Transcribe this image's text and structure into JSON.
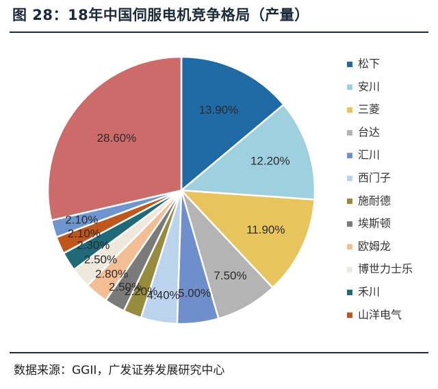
{
  "header": {
    "title": "图 28：18年中国伺服电机竞争格局（产量）"
  },
  "footer": {
    "source": "数据来源：GGII，广发证券发展研究中心"
  },
  "chart_data": {
    "type": "pie",
    "title": "18年中国伺服电机竞争格局（产量）",
    "unit": "%",
    "legend_position": "right",
    "slices": [
      {
        "name": "松下",
        "value": 13.9,
        "label": "13.90%",
        "color": "#1f6aa5"
      },
      {
        "name": "安川",
        "value": 12.2,
        "label": "12.20%",
        "color": "#9ed0e0"
      },
      {
        "name": "三菱",
        "value": 11.9,
        "label": "11.90%",
        "color": "#e8c55c"
      },
      {
        "name": "台达",
        "value": 7.5,
        "label": "7.50%",
        "color": "#b4b4b4"
      },
      {
        "name": "汇川",
        "value": 5.0,
        "label": "5.00%",
        "color": "#6f8fcc"
      },
      {
        "name": "西门子",
        "value": 4.4,
        "label": "4.40%",
        "color": "#bcd3ee"
      },
      {
        "name": "施耐德",
        "value": 2.2,
        "label": "2.20%",
        "color": "#978b3d"
      },
      {
        "name": "埃斯顿",
        "value": 2.5,
        "label": "2.50%",
        "color": "#7a7a7a"
      },
      {
        "name": "欧姆龙",
        "value": 2.8,
        "label": "2.80%",
        "color": "#f4be95"
      },
      {
        "name": "博世力士乐",
        "value": 2.5,
        "label": "2.50%",
        "color": "#efe8dc"
      },
      {
        "name": "禾川",
        "value": 2.3,
        "label": "2.30%",
        "color": "#1e6a78"
      },
      {
        "name": "山洋电气",
        "value": 2.1,
        "label": "2.10%",
        "color": "#c0561c"
      },
      {
        "name": "",
        "value": 2.1,
        "label": "2.10%",
        "color": "#6e95cf"
      },
      {
        "name": "",
        "value": 28.6,
        "label": "28.60%",
        "color": "#cd6b6a"
      }
    ]
  }
}
